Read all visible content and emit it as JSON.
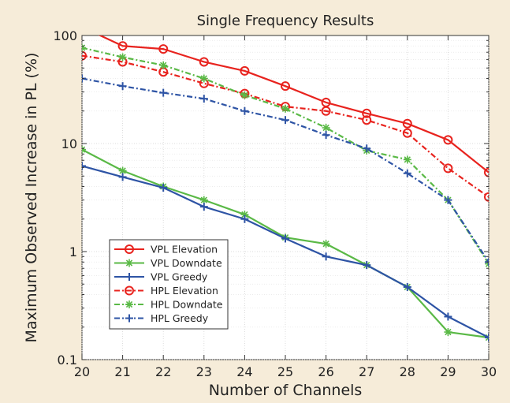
{
  "chart_data": {
    "type": "line",
    "title": "Single Frequency Results",
    "xlabel": "Number of Channels",
    "ylabel": "Maximum Observed Increase in PL (%)",
    "x": [
      20,
      21,
      22,
      23,
      24,
      25,
      26,
      27,
      28,
      29,
      30
    ],
    "xlim": [
      20,
      30
    ],
    "ylim": [
      0.1,
      100
    ],
    "yscale": "log",
    "xticks": [
      "20",
      "21",
      "22",
      "23",
      "24",
      "25",
      "26",
      "27",
      "28",
      "29",
      "30"
    ],
    "yticks": [
      {
        "value": 0.1,
        "label": "0.1"
      },
      {
        "value": 1,
        "label": "1"
      },
      {
        "value": 10,
        "label": "10"
      },
      {
        "value": 100,
        "label": "100"
      }
    ],
    "grid": true,
    "legend_position": "lower-left",
    "background": "#f6ecd9",
    "series": [
      {
        "name": "VPL Elevation",
        "color": "#e8231e",
        "dash": "solid",
        "marker": "circle",
        "values": [
          120,
          80,
          75,
          57,
          47,
          34,
          24,
          19,
          15.3,
          10.8,
          5.4
        ]
      },
      {
        "name": "VPL Downdate",
        "color": "#5ab946",
        "dash": "solid",
        "marker": "asterisk",
        "values": [
          8.8,
          5.6,
          4.0,
          3.0,
          2.2,
          1.35,
          1.18,
          0.75,
          0.47,
          0.18,
          0.16
        ]
      },
      {
        "name": "VPL Greedy",
        "color": "#2e54a5",
        "dash": "solid",
        "marker": "plus",
        "values": [
          6.2,
          4.9,
          3.9,
          2.6,
          2.0,
          1.32,
          0.9,
          0.75,
          0.47,
          0.25,
          0.16
        ]
      },
      {
        "name": "HPL Elevation",
        "color": "#e8231e",
        "dash": "dashdot",
        "marker": "circle",
        "values": [
          65,
          57,
          46,
          36,
          29,
          22,
          20,
          16.5,
          12.5,
          5.9,
          3.2
        ]
      },
      {
        "name": "HPL Downdate",
        "color": "#5ab946",
        "dash": "dashdot",
        "marker": "asterisk",
        "values": [
          77,
          63,
          53,
          40,
          28,
          21,
          14,
          8.6,
          7.1,
          3.0,
          0.77
        ]
      },
      {
        "name": "HPL Greedy",
        "color": "#2e54a5",
        "dash": "dashdot",
        "marker": "plus",
        "values": [
          40,
          34,
          29.5,
          26,
          20,
          16.5,
          12,
          9.0,
          5.3,
          3.0,
          0.8
        ]
      }
    ]
  }
}
